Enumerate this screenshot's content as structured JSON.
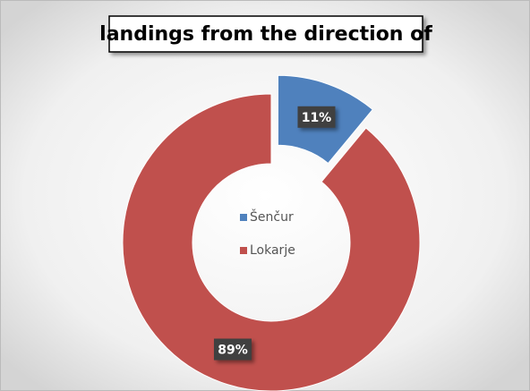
{
  "chart_data": {
    "type": "donut",
    "title": "landings from the direction of",
    "categories": [
      "Šenčur",
      "Lokarje"
    ],
    "values": [
      11,
      89
    ],
    "value_labels": [
      "11%",
      "89%"
    ],
    "colors": [
      "#4f81bd",
      "#c0504d"
    ],
    "legend": "center"
  }
}
